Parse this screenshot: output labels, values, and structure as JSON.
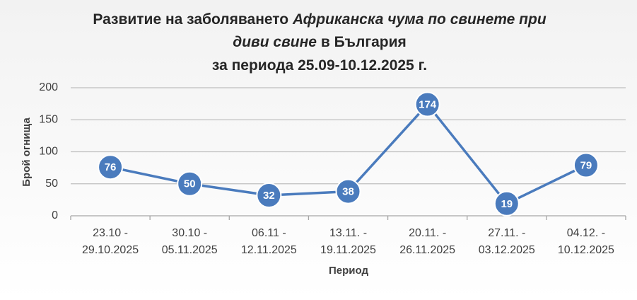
{
  "chart_data": {
    "type": "line",
    "title": [
      [
        {
          "text": "Развитие на заболяването",
          "italic": false
        },
        {
          "text": "Африканска чума по свинете при",
          "italic": true
        }
      ],
      [
        {
          "text": "диви свине",
          "italic": true
        },
        {
          "text": "в България",
          "italic": false
        }
      ],
      [
        {
          "text": "за периода 25.09-10.12.2025 г.",
          "italic": false
        }
      ]
    ],
    "x_label": "Период",
    "y_label": "Брой огнища",
    "categories": [
      [
        "23.10 -",
        "29.10.2025"
      ],
      [
        "30.10 -",
        "05.11.2025"
      ],
      [
        "06.11 -",
        "12.11.2025"
      ],
      [
        "13.11. -",
        "19.11.2025"
      ],
      [
        "20.11. -",
        "26.11.2025"
      ],
      [
        "27.11. -",
        "03.12.2025"
      ],
      [
        "04.12. -",
        "10.12.2025"
      ]
    ],
    "series": [
      {
        "name": "Брой огнища",
        "color": "#4a7bbd",
        "values": [
          76,
          50,
          32,
          38,
          174,
          19,
          79
        ]
      }
    ],
    "ylim": [
      0,
      200
    ],
    "yticks": [
      0,
      50,
      100,
      150,
      200
    ],
    "grid": true
  }
}
